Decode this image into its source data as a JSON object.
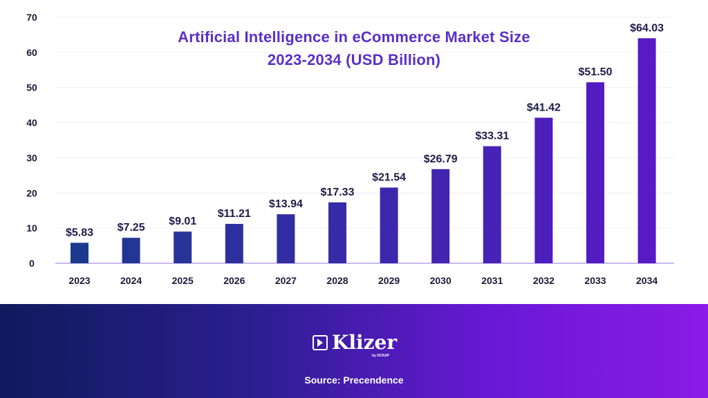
{
  "chart_data": {
    "type": "bar",
    "title_lines": [
      "Artificial Intelligence in eCommerce Market Size",
      "2023-2034 (USD Billion)"
    ],
    "categories": [
      "2023",
      "2024",
      "2025",
      "2026",
      "2027",
      "2028",
      "2029",
      "2030",
      "2031",
      "2032",
      "2033",
      "2034"
    ],
    "values": [
      5.83,
      7.25,
      9.01,
      11.21,
      13.94,
      17.33,
      21.54,
      26.79,
      33.31,
      41.42,
      51.5,
      64.03
    ],
    "data_labels": [
      "$5.83",
      "$7.25",
      "$9.01",
      "$11.21",
      "$13.94",
      "$17.33",
      "$21.54",
      "$26.79",
      "$33.31",
      "$41.42",
      "$51.50",
      "$64.03"
    ],
    "ylim": [
      0,
      70
    ],
    "yticks": [
      "0",
      "10",
      "20",
      "30",
      "40",
      "50",
      "60",
      "70"
    ],
    "grid": true,
    "legend": "none",
    "bar_color_start": "#1a3a8c",
    "bar_color_end": "#5a18c8",
    "baseline_color": "#c9b8f0"
  },
  "footer": {
    "brand": "Klizer",
    "brand_sub": "by DCKAP",
    "source": "Source: Precendence",
    "gradient_start": "#101a5c",
    "gradient_end": "#8a1be8"
  }
}
